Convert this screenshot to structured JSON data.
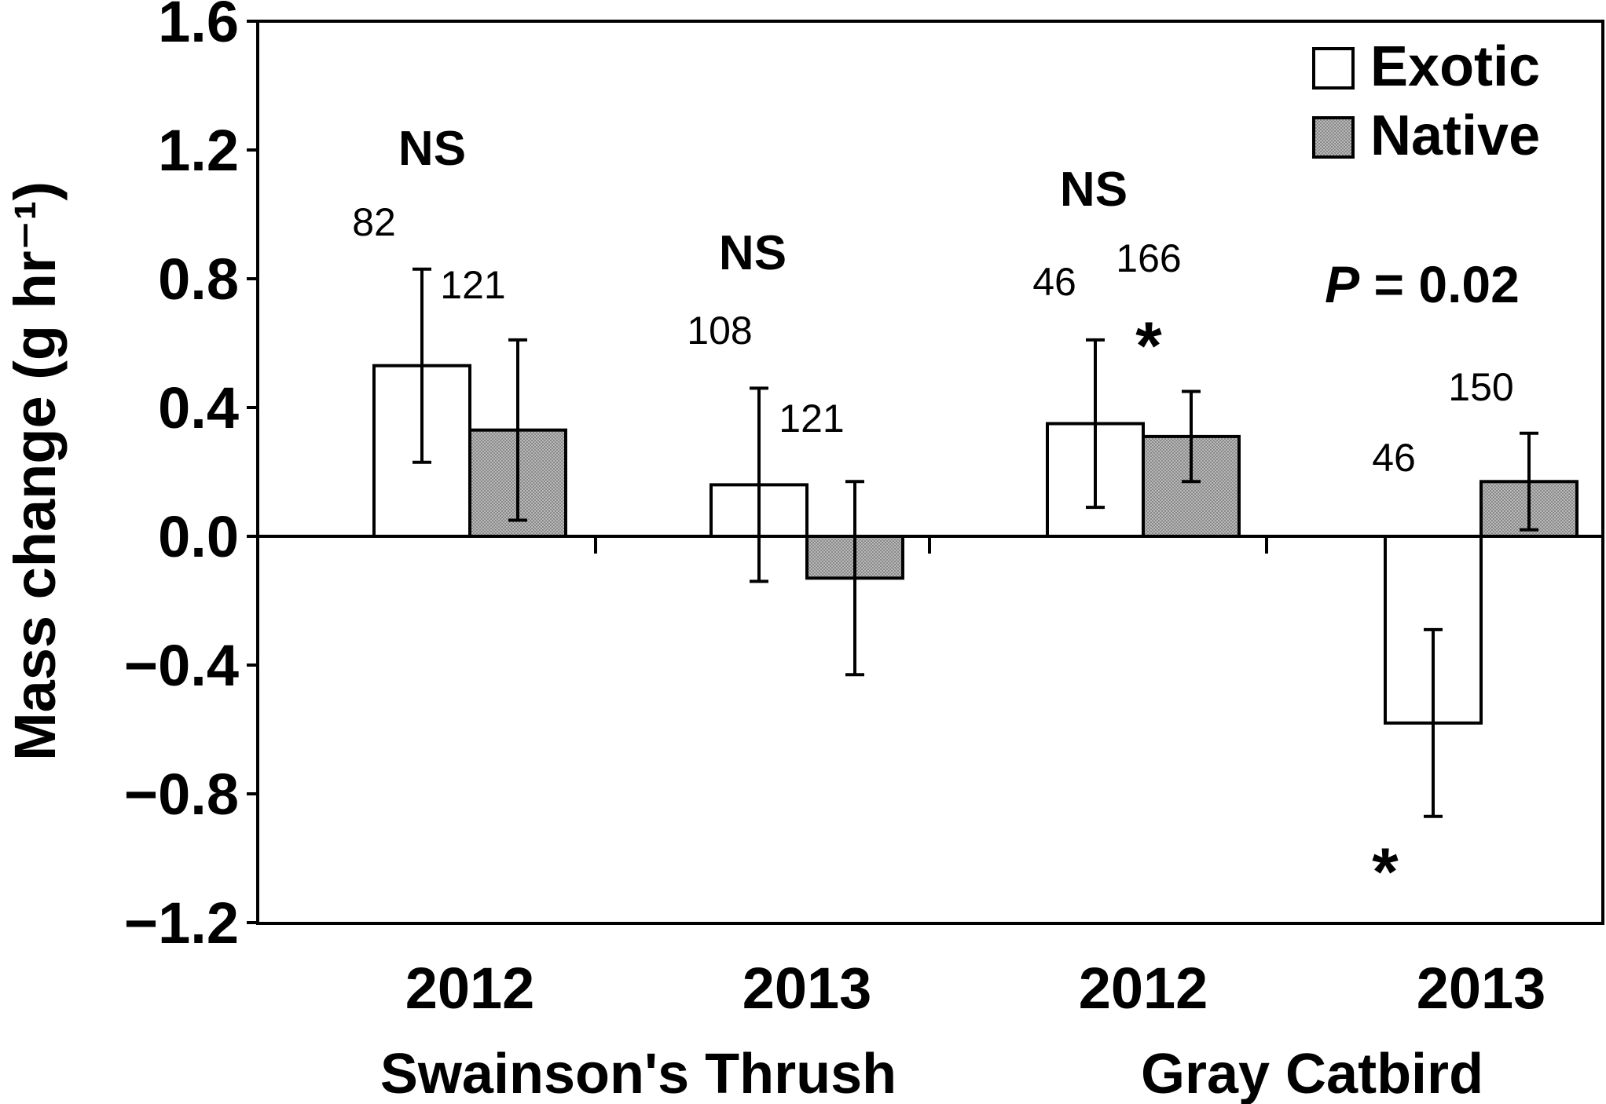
{
  "chart_data": {
    "type": "bar",
    "categories": [
      "2012",
      "2013",
      "2012",
      "2013"
    ],
    "groups": [
      {
        "label": "Swainson's Thrush",
        "categories": [
          0,
          1
        ]
      },
      {
        "label": "Gray Catbird",
        "categories": [
          2,
          3
        ]
      }
    ],
    "series": [
      {
        "name": "Exotic",
        "color": "#ffffff",
        "values": [
          0.53,
          0.16,
          0.35,
          -0.58
        ],
        "errors": [
          0.3,
          0.3,
          0.26,
          0.29
        ],
        "n": [
          "82",
          "108",
          "46",
          "46"
        ]
      },
      {
        "name": "Native",
        "color": "#b8b8b8",
        "values": [
          0.33,
          -0.13,
          0.31,
          0.17
        ],
        "errors": [
          0.28,
          0.3,
          0.14,
          0.15
        ],
        "n": [
          "121",
          "121",
          "166",
          "150"
        ]
      }
    ],
    "ylabel": "Mass change (g hr⁻¹)",
    "xlabel": "",
    "ylim": [
      -1.2,
      1.6
    ],
    "yticks": [
      "1.6",
      "1.2",
      "0.8",
      "0.4",
      "0.0",
      "−0.4",
      "−0.8",
      "−1.2"
    ],
    "significance": [
      "NS",
      "NS",
      "NS",
      "P = 0.02"
    ],
    "asterisk": "*",
    "legend_position": "top-right",
    "grid": false
  }
}
